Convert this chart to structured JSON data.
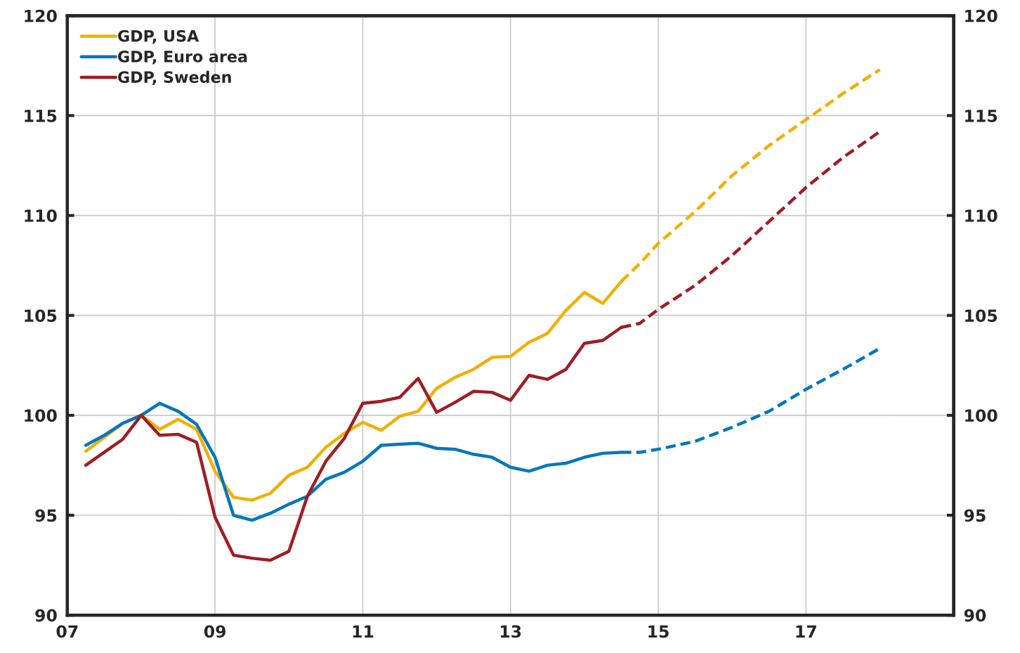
{
  "chart_data": {
    "type": "line",
    "xlim": [
      2007,
      2019
    ],
    "xticks": [
      {
        "value": 2007,
        "label": "07"
      },
      {
        "value": 2009,
        "label": "09"
      },
      {
        "value": 2011,
        "label": "11"
      },
      {
        "value": 2013,
        "label": "13"
      },
      {
        "value": 2015,
        "label": "15"
      },
      {
        "value": 2017,
        "label": "17"
      }
    ],
    "ylim": [
      90,
      120
    ],
    "yticks": [
      90,
      95,
      100,
      105,
      110,
      115,
      120
    ],
    "y2lim": [
      90,
      120
    ],
    "y2ticks": [
      90,
      95,
      100,
      105,
      110,
      115,
      120
    ],
    "grid": true,
    "legend": "top left",
    "series": [
      {
        "name": "GDP, USA",
        "color": "#f0b000",
        "line_style": "solid",
        "x": [
          2007.25,
          2007.5,
          2007.75,
          2008.0,
          2008.25,
          2008.5,
          2008.75,
          2009.0,
          2009.25,
          2009.5,
          2009.75,
          2010.0,
          2010.25,
          2010.5,
          2010.75,
          2011.0,
          2011.25,
          2011.5,
          2011.75,
          2012.0,
          2012.25,
          2012.5,
          2012.75,
          2013.0,
          2013.25,
          2013.5,
          2013.75,
          2014.0,
          2014.25,
          2014.5
        ],
        "values": [
          98.2,
          98.9,
          99.6,
          100.0,
          99.3,
          99.8,
          99.3,
          97.2,
          95.9,
          95.75,
          96.1,
          97.0,
          97.4,
          98.4,
          99.1,
          99.65,
          99.25,
          99.95,
          100.2,
          101.35,
          101.9,
          102.3,
          102.9,
          102.95,
          103.65,
          104.1,
          105.25,
          106.15,
          105.6,
          106.7
        ]
      },
      {
        "name": "GDP, Euro area",
        "color": "#0077bb",
        "line_style": "solid",
        "x": [
          2007.25,
          2007.5,
          2007.75,
          2008.0,
          2008.25,
          2008.5,
          2008.75,
          2009.0,
          2009.25,
          2009.5,
          2009.75,
          2010.0,
          2010.25,
          2010.5,
          2010.75,
          2011.0,
          2011.25,
          2011.5,
          2011.75,
          2012.0,
          2012.25,
          2012.5,
          2012.75,
          2013.0,
          2013.25,
          2013.5,
          2013.75,
          2014.0,
          2014.25,
          2014.5
        ],
        "values": [
          98.5,
          99.0,
          99.6,
          100.0,
          100.6,
          100.2,
          99.55,
          97.9,
          95.0,
          94.75,
          95.1,
          95.55,
          95.95,
          96.8,
          97.15,
          97.7,
          98.5,
          98.55,
          98.6,
          98.35,
          98.3,
          98.05,
          97.9,
          97.4,
          97.2,
          97.5,
          97.6,
          97.9,
          98.1,
          98.15
        ]
      },
      {
        "name": "GDP, Sweden",
        "color": "#a01c24",
        "line_style": "solid",
        "x": [
          2007.25,
          2007.5,
          2007.75,
          2008.0,
          2008.25,
          2008.5,
          2008.75,
          2009.0,
          2009.25,
          2009.5,
          2009.75,
          2010.0,
          2010.25,
          2010.5,
          2010.75,
          2011.0,
          2011.25,
          2011.5,
          2011.75,
          2012.0,
          2012.25,
          2012.5,
          2012.75,
          2013.0,
          2013.25,
          2013.5,
          2013.75,
          2014.0,
          2014.25,
          2014.5
        ],
        "values": [
          97.5,
          98.15,
          98.8,
          100.0,
          99.0,
          99.05,
          98.65,
          94.9,
          93.0,
          92.85,
          92.75,
          93.2,
          95.95,
          97.7,
          98.85,
          100.6,
          100.7,
          100.9,
          101.85,
          100.15,
          100.65,
          101.2,
          101.15,
          100.75,
          102.0,
          101.8,
          102.3,
          103.6,
          103.75,
          104.4
        ]
      },
      {
        "color": "#f0b000",
        "line_style": "dashed",
        "x": [
          2014.5,
          2014.75,
          2015.0,
          2015.5,
          2016.0,
          2016.5,
          2017.0,
          2017.5,
          2018.0
        ],
        "values": [
          106.7,
          107.6,
          108.6,
          110.2,
          112.0,
          113.5,
          114.8,
          116.1,
          117.3
        ]
      },
      {
        "color": "#0077bb",
        "line_style": "dashed",
        "x": [
          2014.5,
          2014.75,
          2015.0,
          2015.5,
          2016.0,
          2016.5,
          2017.0,
          2017.5,
          2018.0
        ],
        "values": [
          98.15,
          98.15,
          98.3,
          98.7,
          99.4,
          100.2,
          101.3,
          102.3,
          103.35
        ]
      },
      {
        "color": "#a01c24",
        "line_style": "dashed",
        "x": [
          2014.5,
          2014.75,
          2015.0,
          2015.5,
          2016.0,
          2016.5,
          2017.0,
          2017.5,
          2018.0
        ],
        "values": [
          104.4,
          104.6,
          105.3,
          106.5,
          108.0,
          109.7,
          111.4,
          112.9,
          114.2
        ]
      }
    ]
  }
}
